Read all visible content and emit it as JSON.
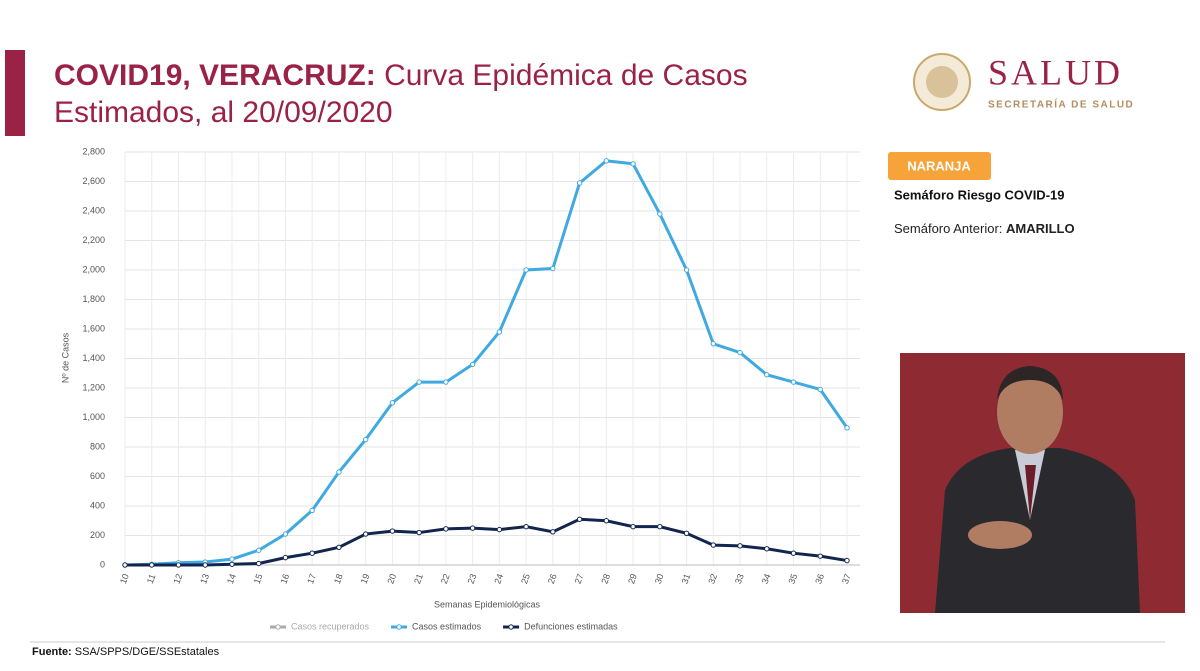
{
  "header": {
    "title_bold": "COVID19, VERACRUZ:",
    "title_line1": "Curva Epidémica de Casos",
    "title_line2": "Estimados, al 20/09/2020",
    "logo_title": "SALUD",
    "logo_subtitle": "SECRETARÍA DE SALUD"
  },
  "semaforo": {
    "badge": "NARANJA",
    "title": "Semáforo Riesgo COVID-19",
    "previous_label": "Semáforo Anterior:",
    "previous_value": "AMARILLO"
  },
  "footer": {
    "label": "Fuente:",
    "text": "SSA/SPPS/DGE/SSEstatales"
  },
  "chart_data": {
    "type": "line",
    "x_label": "Semanas Epidemiológicas",
    "y_label": "Nº de Casos",
    "categories": [
      "10",
      "11",
      "12",
      "13",
      "14",
      "15",
      "16",
      "17",
      "18",
      "19",
      "20",
      "21",
      "22",
      "23",
      "24",
      "25",
      "26",
      "27",
      "28",
      "29",
      "30",
      "31",
      "32",
      "33",
      "34",
      "35",
      "36",
      "37"
    ],
    "series": [
      {
        "name": "Casos recuperados",
        "color": "#aaaaaa"
      },
      {
        "name": "Casos estimados",
        "color": "#3fa9e0",
        "values": [
          0,
          5,
          15,
          20,
          40,
          100,
          210,
          370,
          630,
          850,
          1100,
          1240,
          1240,
          1360,
          1580,
          2000,
          2010,
          2590,
          2740,
          2720,
          2380,
          2000,
          1500,
          1440,
          1290,
          1240,
          1190,
          930
        ]
      },
      {
        "name": "Defunciones estimadas",
        "color": "#12254f",
        "values": [
          0,
          0,
          0,
          0,
          5,
          10,
          50,
          80,
          120,
          210,
          230,
          220,
          245,
          250,
          240,
          260,
          225,
          310,
          300,
          260,
          260,
          215,
          135,
          130,
          110,
          80,
          60,
          30
        ]
      }
    ],
    "ylim": [
      0,
      2800
    ],
    "yticks": [
      0,
      200,
      400,
      600,
      800,
      {
        "value": 1000,
        "label": "1,000"
      },
      {
        "value": 1200,
        "label": "1,200"
      },
      {
        "value": 1400,
        "label": "1,400"
      },
      {
        "value": 1600,
        "label": "1,600"
      },
      {
        "value": 1800,
        "label": "1,800"
      },
      {
        "value": 2000,
        "label": "2,000"
      },
      {
        "value": 2200,
        "label": "2,200"
      },
      {
        "value": 2400,
        "label": "2,400"
      },
      {
        "value": 2600,
        "label": "2,600"
      },
      {
        "value": 2800,
        "label": "2,800"
      }
    ],
    "grid": true
  }
}
